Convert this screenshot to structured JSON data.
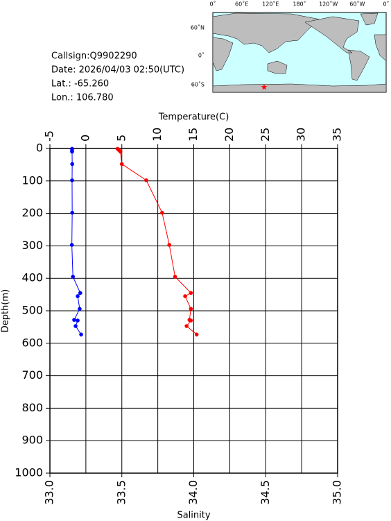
{
  "info": [
    "Callsign:Q9902290",
    "Date:  2026/04/03 02:50(UTC)",
    "Lat.:  -65.260",
    "Lon.:  106.780"
  ],
  "map": {
    "lon_labels": [
      "0˚",
      "60˚E",
      "120˚E",
      "180˚",
      "120˚W",
      "60˚W",
      "0˚"
    ],
    "lat_labels": [
      "60˚N",
      "0˚",
      "60˚S"
    ]
  },
  "chart_data": {
    "type": "line",
    "xlabel": "Temperature(C)",
    "x2label": "Salinity",
    "ylabel": "Depth(m)",
    "xlim": [
      -5,
      35
    ],
    "xticks": [
      -5,
      0,
      5,
      10,
      15,
      20,
      25,
      30,
      35
    ],
    "x2lim": [
      33,
      35
    ],
    "x2ticks": [
      {
        "value": 33,
        "label": "33.0"
      },
      33.5,
      {
        "value": 34,
        "label": "34.0"
      },
      34.5,
      {
        "value": 35,
        "label": "35.0"
      }
    ],
    "ylim": [
      0,
      1000
    ],
    "yticks": [
      0,
      100,
      200,
      300,
      400,
      500,
      600,
      700,
      800,
      900,
      1000
    ],
    "grid": true,
    "y": [
      1,
      5,
      10,
      48,
      98,
      198,
      297,
      395,
      445,
      455,
      494,
      528,
      530,
      547,
      573
    ],
    "series": [
      {
        "color": "#0000ff",
        "axis": "x",
        "values": [
          -1.92,
          -1.92,
          -1.92,
          -1.9,
          -1.92,
          -1.9,
          -1.95,
          -1.8,
          -0.78,
          -1.14,
          -0.86,
          -1.63,
          -1.14,
          -1.43,
          -0.66
        ]
      },
      {
        "color": "#ff0000",
        "axis": "x2",
        "values": [
          33.47,
          33.48,
          33.49,
          33.5,
          33.67,
          33.78,
          33.83,
          33.87,
          33.98,
          33.94,
          33.98,
          33.97,
          33.98,
          33.95,
          34.02
        ]
      }
    ]
  }
}
